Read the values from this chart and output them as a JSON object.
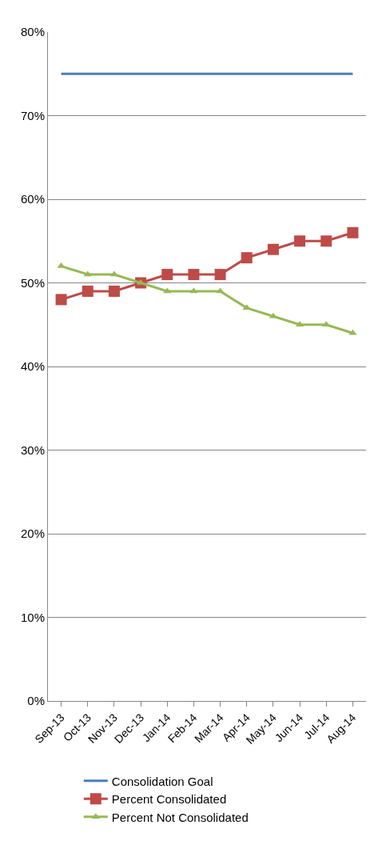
{
  "chart_data": {
    "type": "line",
    "categories": [
      "Sep-13",
      "Oct-13",
      "Nov-13",
      "Dec-13",
      "Jan-14",
      "Feb-14",
      "Mar-14",
      "Apr-14",
      "May-14",
      "Jun-14",
      "Jul-14",
      "Aug-14"
    ],
    "series": [
      {
        "name": "Consolidation Goal",
        "color": "#4a7ebb",
        "marker": "none",
        "values": [
          75,
          75,
          75,
          75,
          75,
          75,
          75,
          75,
          75,
          75,
          75,
          75
        ]
      },
      {
        "name": "Percent Consolidated",
        "color": "#be4b48",
        "marker": "square",
        "values": [
          48,
          49,
          49,
          50,
          51,
          51,
          51,
          53,
          54,
          55,
          55,
          56
        ]
      },
      {
        "name": "Percent Not Consolidated",
        "color": "#98b954",
        "marker": "triangle",
        "values": [
          52,
          51,
          51,
          50,
          49,
          49,
          49,
          47,
          46,
          45,
          45,
          44
        ]
      }
    ],
    "ylim": [
      0,
      80
    ],
    "yticks": [
      {
        "value": 0,
        "label": "0%"
      },
      {
        "value": 10,
        "label": "10%"
      },
      {
        "value": 20,
        "label": "20%"
      },
      {
        "value": 30,
        "label": "30%"
      },
      {
        "value": 40,
        "label": "40%"
      },
      {
        "value": 50,
        "label": "50%"
      },
      {
        "value": 60,
        "label": "60%"
      },
      {
        "value": 70,
        "label": "70%"
      },
      {
        "value": 80,
        "label": "80%"
      }
    ],
    "grid": "y",
    "legend": "bottom"
  }
}
